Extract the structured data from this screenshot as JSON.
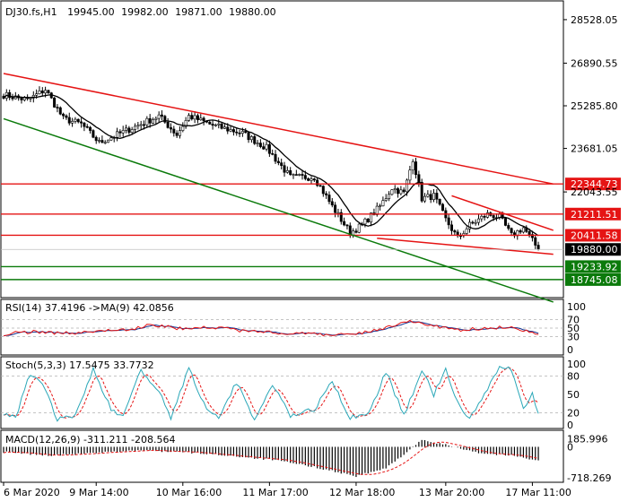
{
  "header": {
    "symbol": "DJ30.fs,H1",
    "open": "19945.00",
    "high": "19982.00",
    "low": "19871.00",
    "close": "19880.00"
  },
  "colors": {
    "bull": "#ffffff",
    "bear": "#000000",
    "ma": "#000000",
    "resistance": "#e51414",
    "support": "#0b7a0b",
    "current_price_bg": "#000000",
    "rsi": "#e51414",
    "rsi_ma": "#0f2f8f",
    "stoch_main": "#2aa7b8",
    "stoch_signal": "#e51414",
    "macd_hist": "#000000",
    "macd_signal": "#e51414"
  },
  "chart_data": {
    "type": "candlestick",
    "y_ticks": [
      "28528.05",
      "26890.55",
      "25285.80",
      "23681.05",
      "22043.55"
    ],
    "ylim": [
      18100,
      29200
    ],
    "x_ticks": [
      "6 Mar 2020",
      "9 Mar 14:00",
      "10 Mar 16:00",
      "11 Mar 17:00",
      "12 Mar 18:00",
      "13 Mar 20:00",
      "17 Mar 11:00"
    ],
    "anchors": [
      {
        "x": 0,
        "v": 25700
      },
      {
        "x": 8,
        "v": 25500
      },
      {
        "x": 14,
        "v": 25900
      },
      {
        "x": 20,
        "v": 24800
      },
      {
        "x": 26,
        "v": 24600
      },
      {
        "x": 32,
        "v": 23900
      },
      {
        "x": 38,
        "v": 24200
      },
      {
        "x": 44,
        "v": 24500
      },
      {
        "x": 52,
        "v": 24900
      },
      {
        "x": 58,
        "v": 24200
      },
      {
        "x": 62,
        "v": 24900
      },
      {
        "x": 70,
        "v": 24550
      },
      {
        "x": 80,
        "v": 24250
      },
      {
        "x": 88,
        "v": 23700
      },
      {
        "x": 96,
        "v": 22600
      },
      {
        "x": 104,
        "v": 22600
      },
      {
        "x": 110,
        "v": 21500
      },
      {
        "x": 116,
        "v": 20500
      },
      {
        "x": 120,
        "v": 20800
      },
      {
        "x": 126,
        "v": 21500
      },
      {
        "x": 130,
        "v": 22200
      },
      {
        "x": 134,
        "v": 22000
      },
      {
        "x": 137,
        "v": 23300
      },
      {
        "x": 140,
        "v": 21800
      },
      {
        "x": 144,
        "v": 21900
      },
      {
        "x": 148,
        "v": 21000
      },
      {
        "x": 152,
        "v": 20300
      },
      {
        "x": 156,
        "v": 20800
      },
      {
        "x": 162,
        "v": 21200
      },
      {
        "x": 166,
        "v": 21100
      },
      {
        "x": 170,
        "v": 20400
      },
      {
        "x": 174,
        "v": 20700
      },
      {
        "x": 179,
        "v": 19880
      }
    ],
    "levels": [
      {
        "label": "22344.73",
        "value": 22344.73,
        "kind": "resistance"
      },
      {
        "label": "21211.51",
        "value": 21211.51,
        "kind": "resistance"
      },
      {
        "label": "20411.58",
        "value": 20411.58,
        "kind": "resistance"
      },
      {
        "label": "19233.92",
        "value": 19233.92,
        "kind": "support"
      },
      {
        "label": "18745.08",
        "value": 18745.08,
        "kind": "support"
      }
    ],
    "current_price": {
      "label": "19880.00",
      "value": 19880
    },
    "trendlines": [
      {
        "kind": "resistance",
        "from": {
          "x": 0,
          "v": 26500
        },
        "to": {
          "x": 184,
          "v": 22344.73
        }
      },
      {
        "kind": "resistance",
        "from": {
          "x": 150,
          "v": 21900
        },
        "to": {
          "x": 184,
          "v": 20600
        }
      },
      {
        "kind": "resistance",
        "from": {
          "x": 125,
          "v": 20300
        },
        "to": {
          "x": 184,
          "v": 19700
        }
      },
      {
        "kind": "support",
        "from": {
          "x": 0,
          "v": 24800
        },
        "to": {
          "x": 184,
          "v": 17900
        }
      }
    ],
    "rsi": {
      "title": "RSI(14) 37.4196 ->MA(9) 42.0856",
      "ticks": [
        "100",
        "70",
        "50",
        "30",
        "0"
      ],
      "tick_values": [
        100,
        70,
        50,
        30,
        0
      ],
      "ylim": [
        0,
        100
      ],
      "gridlines": [
        70,
        50,
        30
      ],
      "anchors": [
        {
          "x": 0,
          "v": 36
        },
        {
          "x": 10,
          "v": 42
        },
        {
          "x": 20,
          "v": 38
        },
        {
          "x": 30,
          "v": 40
        },
        {
          "x": 40,
          "v": 46
        },
        {
          "x": 50,
          "v": 57
        },
        {
          "x": 60,
          "v": 48
        },
        {
          "x": 70,
          "v": 52
        },
        {
          "x": 80,
          "v": 44
        },
        {
          "x": 90,
          "v": 40
        },
        {
          "x": 100,
          "v": 38
        },
        {
          "x": 110,
          "v": 34
        },
        {
          "x": 120,
          "v": 40
        },
        {
          "x": 128,
          "v": 52
        },
        {
          "x": 136,
          "v": 65
        },
        {
          "x": 144,
          "v": 55
        },
        {
          "x": 152,
          "v": 45
        },
        {
          "x": 160,
          "v": 50
        },
        {
          "x": 168,
          "v": 52
        },
        {
          "x": 175,
          "v": 44
        },
        {
          "x": 179,
          "v": 37
        }
      ]
    },
    "stoch": {
      "title": "Stoch(5,3,3) 17.5475 33.7732",
      "ticks": [
        "100",
        "80",
        "50",
        "20",
        "0"
      ],
      "tick_values": [
        100,
        80,
        50,
        20,
        0
      ],
      "ylim": [
        0,
        100
      ],
      "gridlines": [
        80,
        20
      ],
      "anchors": [
        {
          "x": 0,
          "v": 20
        },
        {
          "x": 4,
          "v": 12
        },
        {
          "x": 9,
          "v": 85
        },
        {
          "x": 14,
          "v": 60
        },
        {
          "x": 18,
          "v": 8
        },
        {
          "x": 24,
          "v": 15
        },
        {
          "x": 30,
          "v": 90
        },
        {
          "x": 36,
          "v": 25
        },
        {
          "x": 40,
          "v": 15
        },
        {
          "x": 46,
          "v": 90
        },
        {
          "x": 52,
          "v": 55
        },
        {
          "x": 56,
          "v": 12
        },
        {
          "x": 62,
          "v": 92
        },
        {
          "x": 68,
          "v": 25
        },
        {
          "x": 72,
          "v": 12
        },
        {
          "x": 78,
          "v": 70
        },
        {
          "x": 84,
          "v": 10
        },
        {
          "x": 90,
          "v": 65
        },
        {
          "x": 96,
          "v": 15
        },
        {
          "x": 104,
          "v": 25
        },
        {
          "x": 110,
          "v": 70
        },
        {
          "x": 116,
          "v": 12
        },
        {
          "x": 122,
          "v": 15
        },
        {
          "x": 128,
          "v": 88
        },
        {
          "x": 134,
          "v": 15
        },
        {
          "x": 140,
          "v": 90
        },
        {
          "x": 144,
          "v": 50
        },
        {
          "x": 148,
          "v": 90
        },
        {
          "x": 152,
          "v": 35
        },
        {
          "x": 156,
          "v": 12
        },
        {
          "x": 162,
          "v": 60
        },
        {
          "x": 166,
          "v": 95
        },
        {
          "x": 170,
          "v": 90
        },
        {
          "x": 174,
          "v": 25
        },
        {
          "x": 177,
          "v": 50
        },
        {
          "x": 179,
          "v": 18
        }
      ]
    },
    "macd": {
      "title": "MACD(12,26,9) -311.211 -208.564",
      "ticks": [
        "185.996",
        "0",
        "-718.269"
      ],
      "tick_values": [
        185.996,
        0,
        -718.269
      ],
      "ylim": [
        -780,
        300
      ],
      "anchors": [
        {
          "x": 0,
          "v": -120
        },
        {
          "x": 15,
          "v": -200
        },
        {
          "x": 30,
          "v": -150
        },
        {
          "x": 45,
          "v": -80
        },
        {
          "x": 60,
          "v": -120
        },
        {
          "x": 75,
          "v": -200
        },
        {
          "x": 90,
          "v": -300
        },
        {
          "x": 105,
          "v": -480
        },
        {
          "x": 118,
          "v": -680
        },
        {
          "x": 128,
          "v": -500
        },
        {
          "x": 136,
          "v": -60
        },
        {
          "x": 140,
          "v": 150
        },
        {
          "x": 150,
          "v": 20
        },
        {
          "x": 160,
          "v": -150
        },
        {
          "x": 170,
          "v": -200
        },
        {
          "x": 179,
          "v": -311
        }
      ]
    }
  }
}
